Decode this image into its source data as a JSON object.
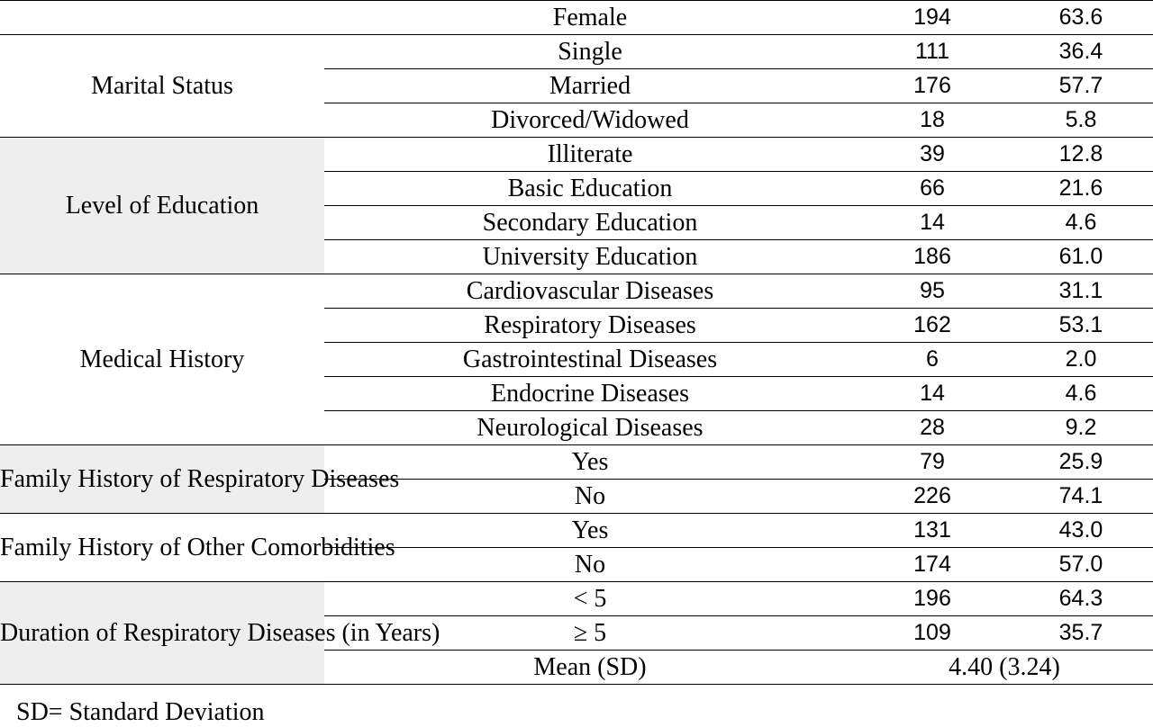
{
  "table": {
    "groups": [
      {
        "category": "",
        "shaded": false,
        "rows": [
          {
            "label": "Female",
            "n": "194",
            "pct": "63.6"
          }
        ]
      },
      {
        "category": "Marital Status",
        "shaded": false,
        "rows": [
          {
            "label": "Single",
            "n": "111",
            "pct": "36.4"
          },
          {
            "label": "Married",
            "n": "176",
            "pct": "57.7"
          },
          {
            "label": "Divorced/Widowed",
            "n": "18",
            "pct": "5.8"
          }
        ]
      },
      {
        "category": "Level of Education",
        "shaded": true,
        "rows": [
          {
            "label": "Illiterate",
            "n": "39",
            "pct": "12.8"
          },
          {
            "label": "Basic Education",
            "n": "66",
            "pct": "21.6"
          },
          {
            "label": "Secondary Education",
            "n": "14",
            "pct": "4.6"
          },
          {
            "label": "University Education",
            "n": "186",
            "pct": "61.0"
          }
        ]
      },
      {
        "category": "Medical History",
        "shaded": false,
        "rows": [
          {
            "label": "Cardiovascular Diseases",
            "n": "95",
            "pct": "31.1"
          },
          {
            "label": "Respiratory Diseases",
            "n": "162",
            "pct": "53.1"
          },
          {
            "label": "Gastrointestinal Diseases",
            "n": "6",
            "pct": "2.0"
          },
          {
            "label": "Endocrine Diseases",
            "n": "14",
            "pct": "4.6"
          },
          {
            "label": "Neurological Diseases",
            "n": "28",
            "pct": "9.2"
          }
        ]
      },
      {
        "category": "Family History of Respiratory Diseases",
        "shaded": true,
        "rows": [
          {
            "label": "Yes",
            "n": "79",
            "pct": "25.9"
          },
          {
            "label": "No",
            "n": "226",
            "pct": "74.1"
          }
        ]
      },
      {
        "category": "Family History of Other Comorbidities",
        "shaded": false,
        "rows": [
          {
            "label": "Yes",
            "n": "131",
            "pct": "43.0"
          },
          {
            "label": "No",
            "n": "174",
            "pct": "57.0"
          }
        ]
      },
      {
        "category": "Duration of Respiratory Diseases (in Years)",
        "shaded": true,
        "rows": [
          {
            "label": "< 5",
            "n": "196",
            "pct": "64.3"
          },
          {
            "label": "≥ 5",
            "n": "109",
            "pct": "35.7"
          },
          {
            "label": "Mean (SD)",
            "merged_value": "4.40 (3.24)"
          }
        ]
      }
    ]
  },
  "footnote": "SD= Standard Deviation",
  "colors": {
    "category_shade": "#eeeeee",
    "rule": "#000000"
  }
}
